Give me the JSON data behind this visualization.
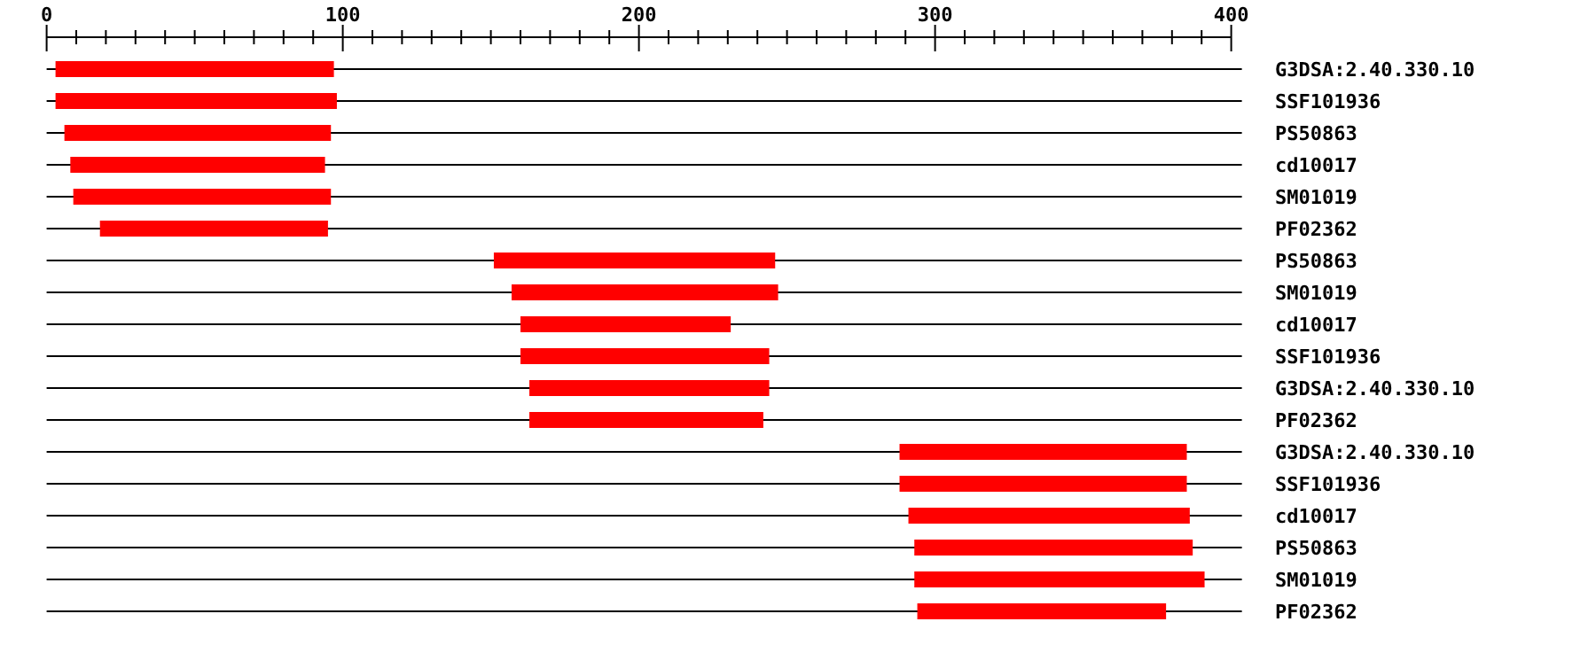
{
  "chart_data": {
    "type": "bar",
    "orientation": "horizontal",
    "grid": "y",
    "color": "#ff0000",
    "categories": [
      "G3DSA:2.40.330.10",
      "SSF101936",
      "PS50863",
      "cd10017",
      "SM01019",
      "PF02362",
      "PS50863",
      "SM01019",
      "cd10017",
      "SSF101936",
      "G3DSA:2.40.330.10",
      "PF02362",
      "G3DSA:2.40.330.10",
      "SSF101936",
      "cd10017",
      "PS50863",
      "SM01019",
      "PF02362"
    ],
    "base": [
      3,
      3,
      6,
      8,
      9,
      18,
      151,
      157,
      160,
      160,
      163,
      163,
      288,
      288,
      291,
      293,
      293,
      294
    ],
    "values": [
      94,
      95,
      90,
      86,
      87,
      77,
      95,
      90,
      71,
      84,
      81,
      79,
      97,
      97,
      95,
      94,
      98,
      84
    ],
    "xlim": [
      0,
      400
    ],
    "xticks": [
      0,
      {
        "value": 10,
        "label": null
      },
      {
        "value": 20,
        "label": null
      },
      {
        "value": 30,
        "label": null
      },
      {
        "value": 40,
        "label": null
      },
      {
        "value": 50,
        "label": null
      },
      {
        "value": 60,
        "label": null
      },
      {
        "value": 70,
        "label": null
      },
      {
        "value": 80,
        "label": null
      },
      {
        "value": 90,
        "label": null
      },
      100,
      {
        "value": 110,
        "label": null
      },
      {
        "value": 120,
        "label": null
      },
      {
        "value": 130,
        "label": null
      },
      {
        "value": 140,
        "label": null
      },
      {
        "value": 150,
        "label": null
      },
      {
        "value": 160,
        "label": null
      },
      {
        "value": 170,
        "label": null
      },
      {
        "value": 180,
        "label": null
      },
      {
        "value": 190,
        "label": null
      },
      200,
      {
        "value": 210,
        "label": null
      },
      {
        "value": 220,
        "label": null
      },
      {
        "value": 230,
        "label": null
      },
      {
        "value": 240,
        "label": null
      },
      {
        "value": 250,
        "label": null
      },
      {
        "value": 260,
        "label": null
      },
      {
        "value": 270,
        "label": null
      },
      {
        "value": 280,
        "label": null
      },
      {
        "value": 290,
        "label": null
      },
      300,
      {
        "value": 310,
        "label": null
      },
      {
        "value": 320,
        "label": null
      },
      {
        "value": 330,
        "label": null
      },
      {
        "value": 340,
        "label": null
      },
      {
        "value": 350,
        "label": null
      },
      {
        "value": 360,
        "label": null
      },
      {
        "value": 370,
        "label": null
      },
      {
        "value": 380,
        "label": null
      },
      {
        "value": 390,
        "label": null
      },
      400
    ]
  }
}
